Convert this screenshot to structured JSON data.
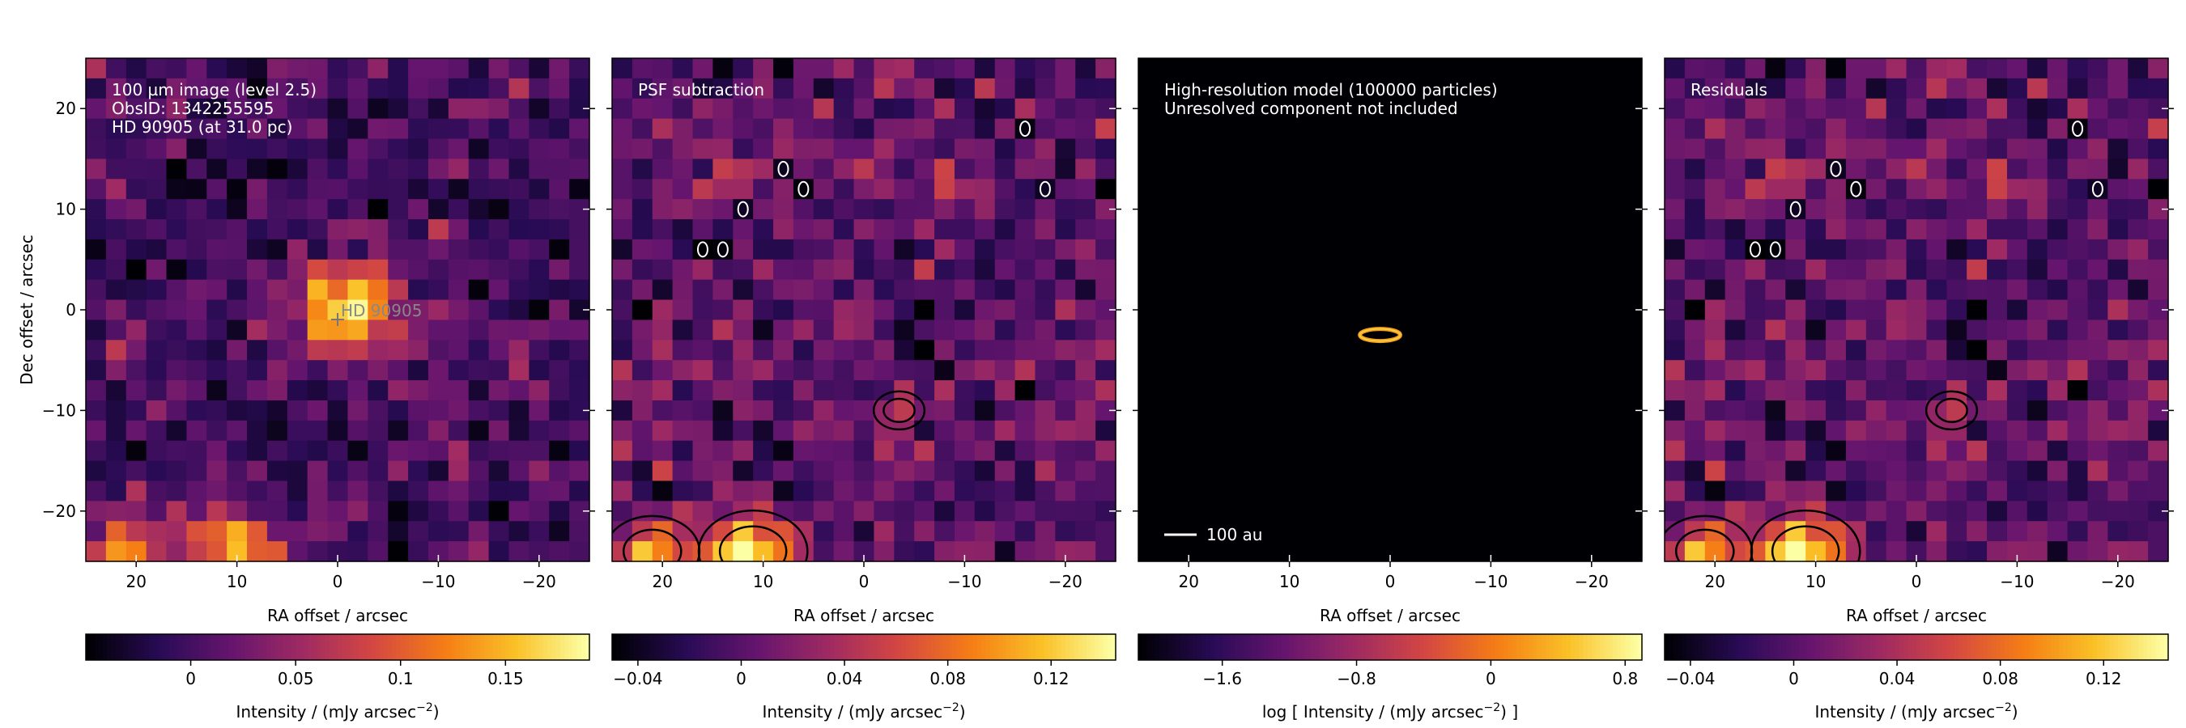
{
  "chart_data": [
    {
      "type": "heatmap",
      "panel_labels": [
        "100 µm image (level 2.5)",
        "ObsID: 1342255595",
        "HD 90905 (at 31.0 pc)"
      ],
      "star_label": "HD 90905",
      "star_position": [
        0,
        0
      ],
      "xlabel": "RA offset / arcsec",
      "ylabel": "Dec offset / arcsec",
      "xlim": [
        25,
        -25
      ],
      "ylim": [
        -25,
        25
      ],
      "xticks": [
        20,
        10,
        0,
        -10,
        -20
      ],
      "yticks": [
        20,
        10,
        0,
        -10,
        -20
      ],
      "xtick_labels": [
        "20",
        "10",
        "0",
        "−10",
        "−20"
      ],
      "ytick_labels": [
        "20",
        "10",
        "0",
        "−10",
        "−20"
      ],
      "colormap": "inferno",
      "grid": false,
      "colorbar": {
        "label": "Intensity / (mJy arcsec−2)",
        "range": [
          -0.05,
          0.19
        ],
        "ticks": [
          0,
          0.05,
          0.1,
          0.15
        ],
        "tick_labels": [
          "0",
          "0.05",
          "0.1",
          "0.15"
        ]
      },
      "sources": [
        {
          "x": -1,
          "y": 0,
          "sigma": 3.4,
          "amplitude": 0.18
        },
        {
          "x": 11,
          "y": -24,
          "sigma": 3.0,
          "amplitude": 0.15
        },
        {
          "x": 21,
          "y": -24,
          "sigma": 2.6,
          "amplitude": 0.12
        }
      ],
      "noise_rms": 0.022,
      "seed": 7
    },
    {
      "type": "heatmap",
      "panel_labels": [
        "PSF subtraction"
      ],
      "xlabel": "RA offset / arcsec",
      "xlim": [
        25,
        -25
      ],
      "ylim": [
        -25,
        25
      ],
      "xticks": [
        20,
        10,
        0,
        -10,
        -20
      ],
      "xtick_labels": [
        "20",
        "10",
        "0",
        "−10",
        "−20"
      ],
      "colormap": "inferno",
      "grid": false,
      "contours": true,
      "colorbar": {
        "label": "Intensity / (mJy arcsec−2)",
        "range": [
          -0.05,
          0.145
        ],
        "ticks": [
          -0.04,
          0,
          0.04,
          0.08,
          0.12
        ],
        "tick_labels": [
          "−0.04",
          "0",
          "0.04",
          "0.08",
          "0.12"
        ]
      },
      "sources": [
        {
          "x": -3.5,
          "y": -10,
          "sigma": 1.4,
          "amplitude": 0.07
        },
        {
          "x": 11,
          "y": -24,
          "sigma": 3.0,
          "amplitude": 0.14
        },
        {
          "x": 21,
          "y": -24,
          "sigma": 2.6,
          "amplitude": 0.11
        }
      ],
      "noise_rms": 0.022,
      "seed": 19
    },
    {
      "type": "heatmap",
      "panel_labels": [
        "High-resolution model (100000 particles)",
        "Unresolved component not included"
      ],
      "scalebar_label": "100 au",
      "xlabel": "RA offset / arcsec",
      "xlim": [
        25,
        -25
      ],
      "ylim": [
        -25,
        25
      ],
      "xticks": [
        20,
        10,
        0,
        -10,
        -20
      ],
      "xtick_labels": [
        "20",
        "10",
        "0",
        "−10",
        "−20"
      ],
      "colormap": "inferno",
      "grid": false,
      "model_ring": {
        "x": 1,
        "y": -2.5,
        "rx": 2,
        "ry": 0.6
      },
      "colorbar": {
        "label": "log [ Intensity / (mJy arcsec−2) ]",
        "range": [
          -2.1,
          0.9
        ],
        "ticks": [
          -1.6,
          -0.8,
          0,
          0.8
        ],
        "tick_labels": [
          "−1.6",
          "−0.8",
          "0",
          "0.8"
        ]
      }
    },
    {
      "type": "heatmap",
      "panel_labels": [
        "Residuals"
      ],
      "xlabel": "RA offset / arcsec",
      "xlim": [
        25,
        -25
      ],
      "ylim": [
        -25,
        25
      ],
      "xticks": [
        20,
        10,
        0,
        -10,
        -20
      ],
      "xtick_labels": [
        "20",
        "10",
        "0",
        "−10",
        "−20"
      ],
      "colormap": "inferno",
      "grid": false,
      "contours": true,
      "colorbar": {
        "label": "Intensity / (mJy arcsec−2)",
        "range": [
          -0.05,
          0.145
        ],
        "ticks": [
          -0.04,
          0,
          0.04,
          0.08,
          0.12
        ],
        "tick_labels": [
          "−0.04",
          "0",
          "0.04",
          "0.08",
          "0.12"
        ]
      },
      "sources": [
        {
          "x": -3.5,
          "y": -10,
          "sigma": 1.4,
          "amplitude": 0.07
        },
        {
          "x": 11,
          "y": -24,
          "sigma": 3.0,
          "amplitude": 0.14
        },
        {
          "x": 21,
          "y": -24,
          "sigma": 2.6,
          "amplitude": 0.11
        }
      ],
      "noise_rms": 0.022,
      "seed": 19
    }
  ]
}
